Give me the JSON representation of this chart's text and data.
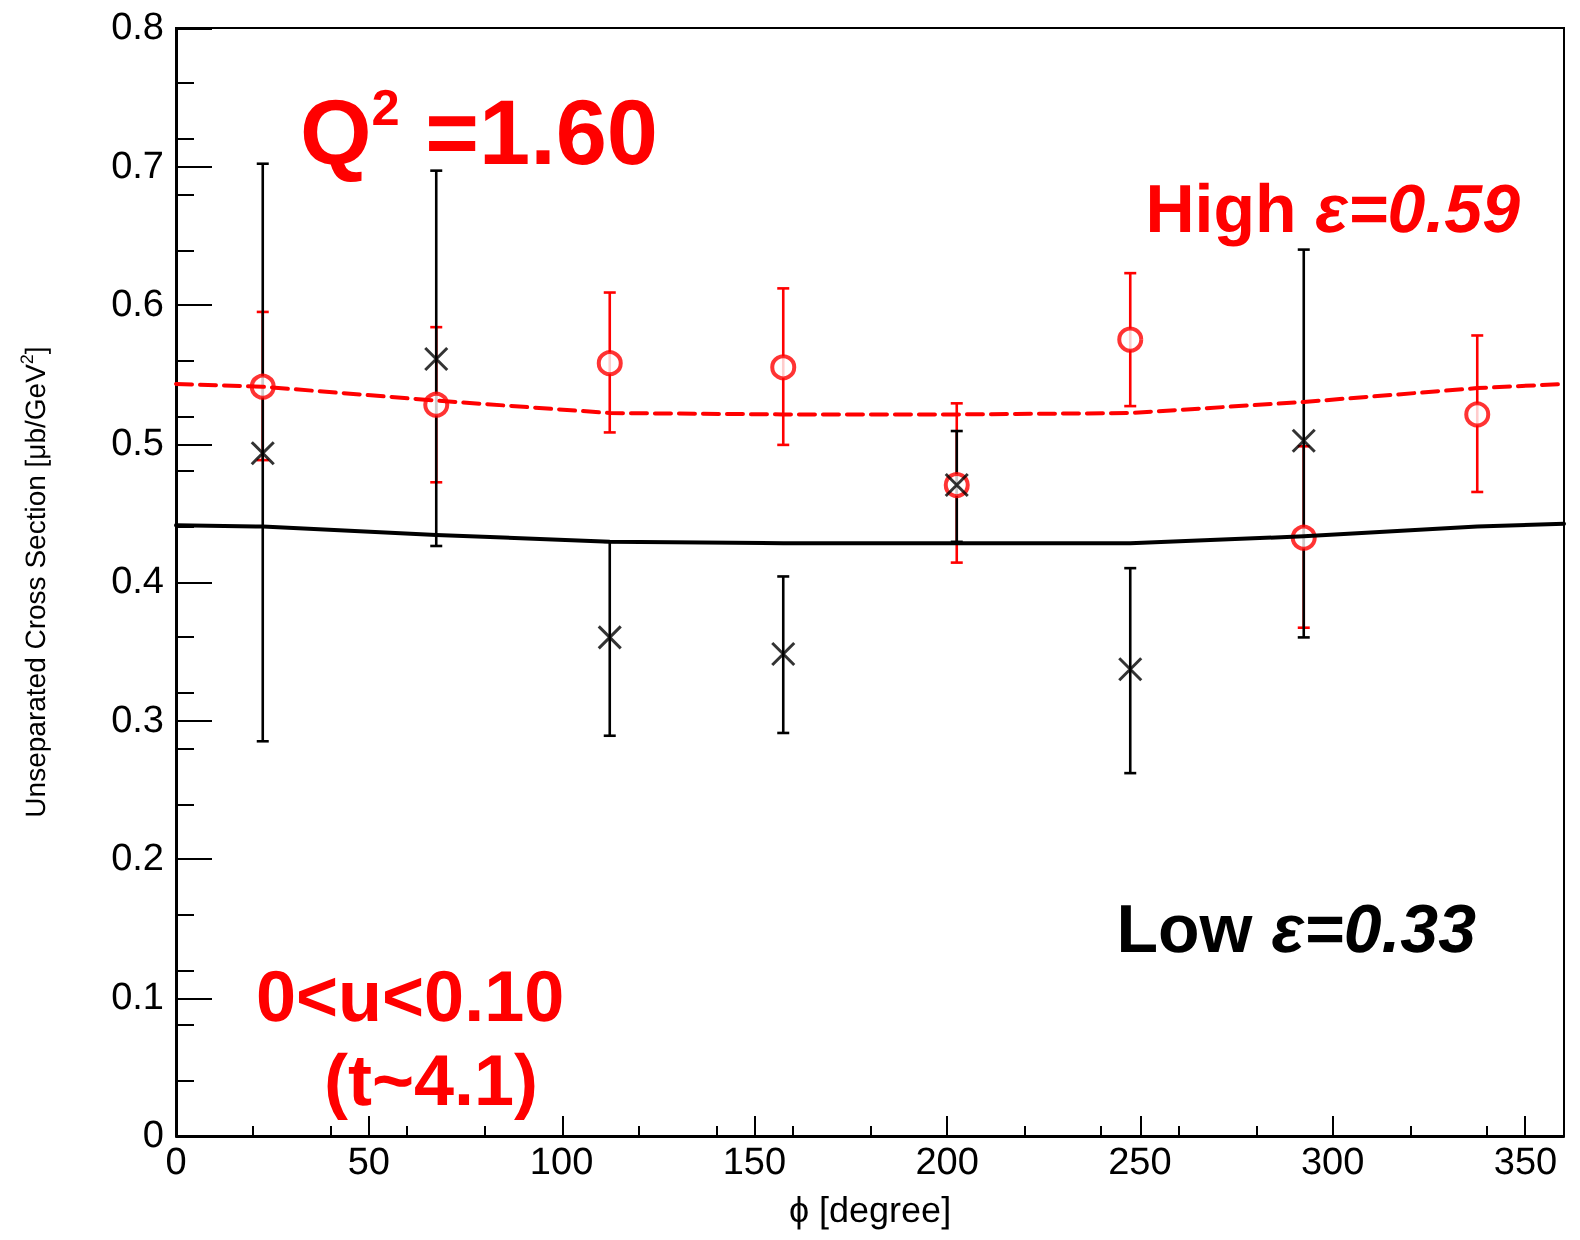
{
  "chart_data": {
    "type": "scatter",
    "xlabel": "ϕ [degree]",
    "ylabel": "Unseparated Cross Section [μb/GeV$^{2}$]",
    "x": [
      22.5,
      67.5,
      112.5,
      157.5,
      202.5,
      247.5,
      292.5,
      337.5
    ],
    "series": [
      {
        "name": "High ε=0.59",
        "color": "#ff0000",
        "marker": "circle",
        "values": [
          0.541,
          0.528,
          0.558,
          0.555,
          0.47,
          0.575,
          0.432,
          0.521
        ],
        "errors": [
          [
            0.488,
            0.595
          ],
          [
            0.472,
            0.584
          ],
          [
            0.508,
            0.609
          ],
          [
            0.499,
            0.612
          ],
          [
            0.414,
            0.529
          ],
          [
            0.527,
            0.623
          ],
          [
            0.367,
            0.498
          ],
          [
            0.465,
            0.578
          ]
        ]
      },
      {
        "name": "Low ε=0.33",
        "color": "#000000",
        "marker": "cross",
        "x": [
          22.5,
          67.5,
          112.5,
          157.5,
          202.5,
          247.5,
          292.5
        ],
        "values": [
          0.493,
          0.561,
          0.36,
          0.348,
          0.47,
          0.337,
          0.502
        ],
        "errors": [
          [
            0.285,
            0.702
          ],
          [
            0.426,
            0.697
          ],
          [
            0.289,
            0.429
          ],
          [
            0.291,
            0.404
          ],
          [
            0.429,
            0.509
          ],
          [
            0.262,
            0.41
          ],
          [
            0.36,
            0.64
          ]
        ]
      },
      {
        "type": "line",
        "color": "#ff0000",
        "line_style": "dashed",
        "marker": "none",
        "x": [
          0,
          22.5,
          67.5,
          112.5,
          157.5,
          202.5,
          247.5,
          292.5,
          337.5,
          360
        ],
        "values": [
          0.543,
          0.541,
          0.531,
          0.522,
          0.521,
          0.521,
          0.522,
          0.53,
          0.54,
          0.543
        ]
      },
      {
        "type": "line",
        "color": "#000000",
        "line_style": "solid",
        "marker": "none",
        "x": [
          0,
          22.5,
          67.5,
          112.5,
          157.5,
          202.5,
          247.5,
          292.5,
          337.5,
          360
        ],
        "values": [
          0.441,
          0.44,
          0.434,
          0.429,
          0.428,
          0.428,
          0.428,
          0.433,
          0.44,
          0.442
        ]
      }
    ],
    "annotations": [
      "Q$^{2}$ =1.60",
      "0<u<0.10",
      "(t~4.1)"
    ],
    "xlim": [
      0,
      360
    ],
    "xticks": [
      0,
      50,
      100,
      150,
      200,
      250,
      300,
      350
    ],
    "ylim": [
      0,
      0.8
    ],
    "yticks": [
      0,
      0.1,
      0.2,
      0.3,
      0.4,
      0.5,
      0.6,
      0.7,
      0.8
    ],
    "grid": false,
    "legend": false
  }
}
